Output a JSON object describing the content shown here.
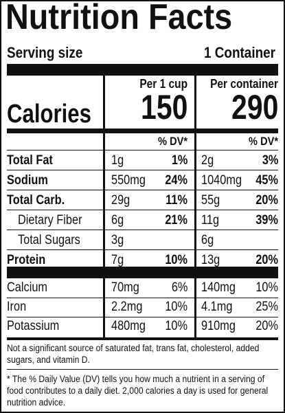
{
  "title": "Nutrition Facts",
  "serving": {
    "label": "Serving size",
    "value": "1 Container"
  },
  "columns": {
    "per_cup": "Per 1 cup",
    "per_container": "Per container"
  },
  "calories": {
    "label": "Calories",
    "per_cup": "150",
    "per_container": "290"
  },
  "dv_header": "% DV*",
  "nutrients": [
    {
      "name": "Total Fat",
      "bold": true,
      "indent": false,
      "cup_amt": "1g",
      "cup_dv": "1%",
      "cont_amt": "2g",
      "cont_dv": "3%",
      "dv_bold": true
    },
    {
      "name": "Sodium",
      "bold": true,
      "indent": false,
      "cup_amt": "550mg",
      "cup_dv": "24%",
      "cont_amt": "1040mg",
      "cont_dv": "45%",
      "dv_bold": true
    },
    {
      "name": "Total Carb.",
      "bold": true,
      "indent": false,
      "cup_amt": "29g",
      "cup_dv": "11%",
      "cont_amt": "55g",
      "cont_dv": "20%",
      "dv_bold": true
    },
    {
      "name": "Dietary Fiber",
      "bold": false,
      "indent": true,
      "cup_amt": "6g",
      "cup_dv": "21%",
      "cont_amt": "11g",
      "cont_dv": "39%",
      "dv_bold": true
    },
    {
      "name": "Total Sugars",
      "bold": false,
      "indent": true,
      "cup_amt": "3g",
      "cup_dv": "",
      "cont_amt": "6g",
      "cont_dv": "",
      "dv_bold": true
    },
    {
      "name": "Protein",
      "bold": true,
      "indent": false,
      "cup_amt": "7g",
      "cup_dv": "10%",
      "cont_amt": "13g",
      "cont_dv": "20%",
      "dv_bold": true
    }
  ],
  "minerals": [
    {
      "name": "Calcium",
      "cup_amt": "70mg",
      "cup_dv": "6%",
      "cont_amt": "140mg",
      "cont_dv": "10%"
    },
    {
      "name": "Iron",
      "cup_amt": "2.2mg",
      "cup_dv": "10%",
      "cont_amt": "4.1mg",
      "cont_dv": "25%"
    },
    {
      "name": "Potassium",
      "cup_amt": "480mg",
      "cup_dv": "10%",
      "cont_amt": "910mg",
      "cont_dv": "20%"
    }
  ],
  "footnote_1": "Not a significant source of saturated fat, trans fat, cholesterol, added sugars, and vitamin D.",
  "footnote_2": "* The % Daily Value (DV) tells you how much a nutrient in a serving of food contributes to a daily diet. 2,000 calories a day is used for general nutrition advice."
}
